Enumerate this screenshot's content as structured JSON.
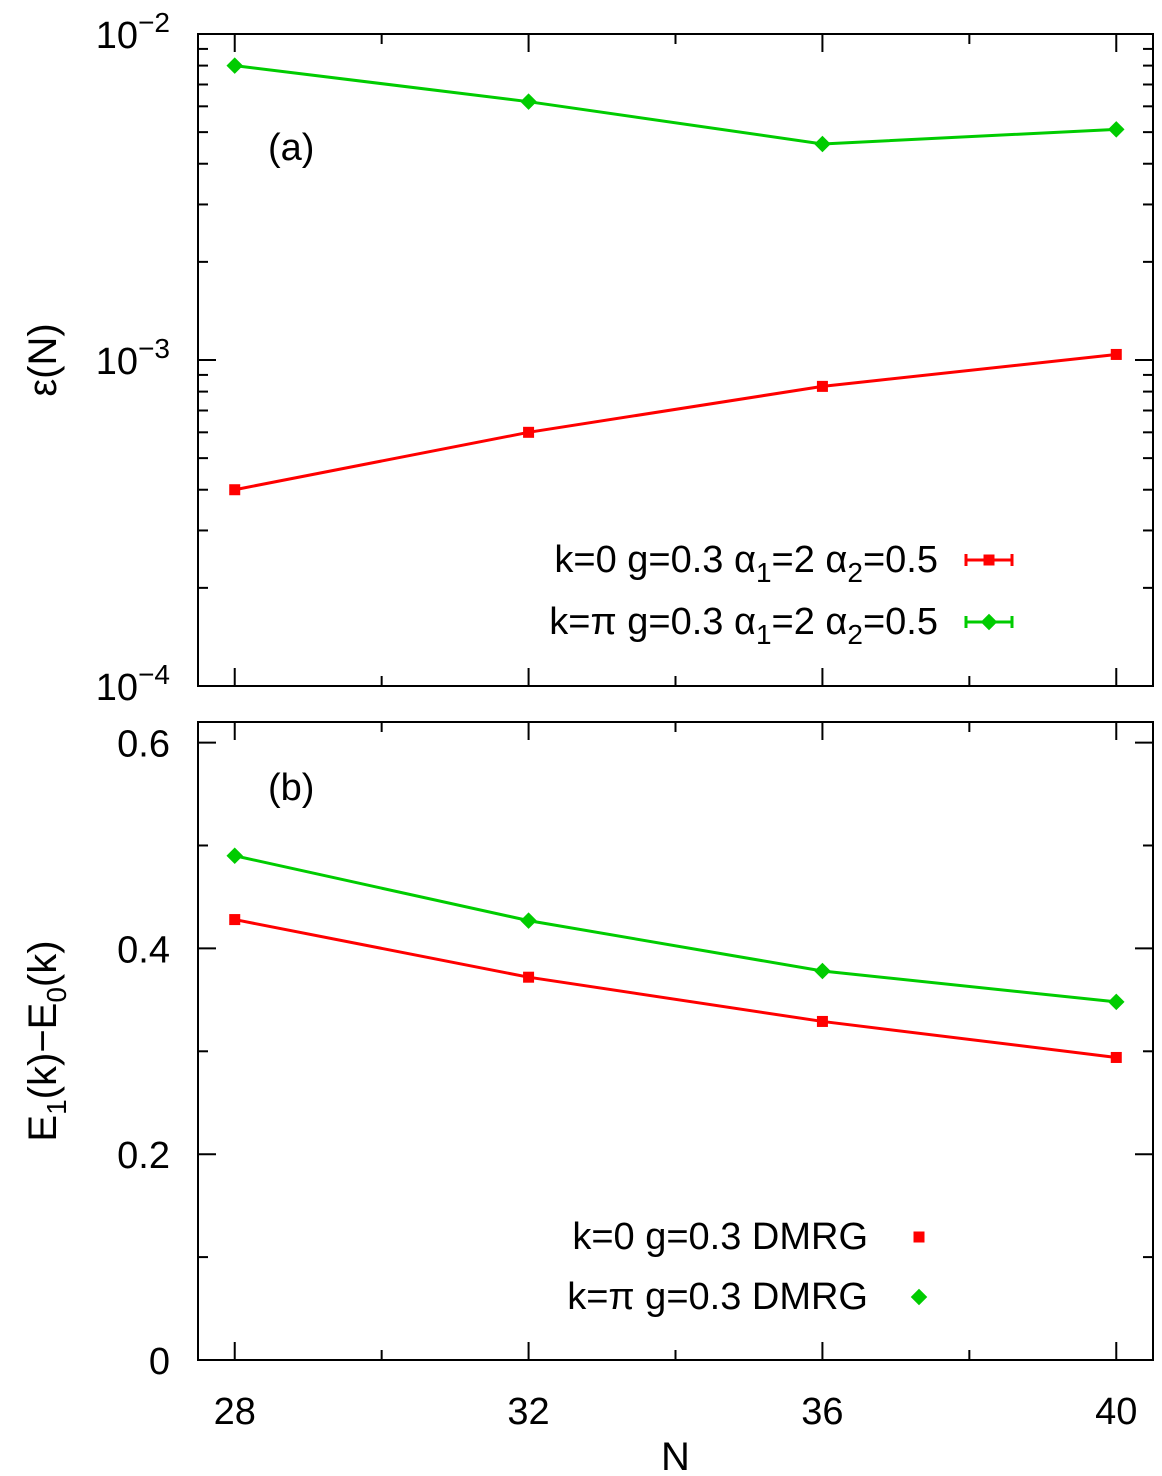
{
  "chart_data": [
    {
      "type": "line",
      "panel_label": "(a)",
      "ylabel": "ε(N)",
      "yscale": "log",
      "ylim": [
        0.0001,
        0.01
      ],
      "y_tick_labels": [
        {
          "base": "10",
          "exp": "−2",
          "value": 0.01
        },
        {
          "base": "10",
          "exp": "−3",
          "value": 0.001
        },
        {
          "base": "10",
          "exp": "−4",
          "value": 0.0001
        }
      ],
      "x": [
        28,
        32,
        36,
        40
      ],
      "xlim": [
        27.5,
        40.5
      ],
      "legend_position": "bottom-right",
      "series": [
        {
          "name": "k=0 g=0.3 α1=2 α2=0.5",
          "legend_parts": [
            "k=0 g=0.3 α",
            "1",
            "=2 α",
            "2",
            "=0.5"
          ],
          "color": "#ff0000",
          "marker": "square",
          "values": [
            0.0004,
            0.0006,
            0.00083,
            0.00104
          ]
        },
        {
          "name": "k=π g=0.3 α1=2 α2=0.5",
          "legend_parts": [
            "k=π g=0.3 α",
            "1",
            "=2 α",
            "2",
            "=0.5"
          ],
          "color": "#00cc00",
          "marker": "diamond",
          "values": [
            0.008,
            0.0062,
            0.0046,
            0.0051
          ]
        }
      ]
    },
    {
      "type": "line",
      "panel_label": "(b)",
      "ylabel_parts": [
        "E",
        "1",
        "(k)−E",
        "0",
        "(k)"
      ],
      "ylim": [
        0,
        0.62
      ],
      "y_ticks": [
        0,
        0.2,
        0.4,
        0.6
      ],
      "y_tick_labels": [
        "0",
        "0.2",
        "0.4",
        "0.6"
      ],
      "x": [
        28,
        32,
        36,
        40
      ],
      "xlim": [
        27.5,
        40.5
      ],
      "xlabel": "N",
      "x_tick_labels": [
        "28",
        "32",
        "36",
        "40"
      ],
      "legend_position": "bottom-right",
      "series": [
        {
          "name": "k=0 g=0.3 DMRG",
          "color": "#ff0000",
          "marker": "square",
          "values": [
            0.428,
            0.372,
            0.329,
            0.294
          ]
        },
        {
          "name": "k=π g=0.3 DMRG",
          "color": "#00cc00",
          "marker": "diamond",
          "values": [
            0.49,
            0.427,
            0.378,
            0.348
          ]
        }
      ]
    }
  ]
}
